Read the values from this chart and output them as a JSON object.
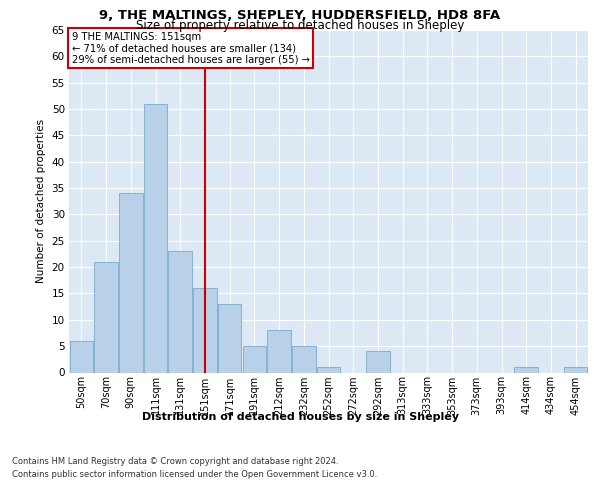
{
  "title_line1": "9, THE MALTINGS, SHEPLEY, HUDDERSFIELD, HD8 8FA",
  "title_line2": "Size of property relative to detached houses in Shepley",
  "xlabel": "Distribution of detached houses by size in Shepley",
  "ylabel": "Number of detached properties",
  "categories": [
    "50sqm",
    "70sqm",
    "90sqm",
    "111sqm",
    "131sqm",
    "151sqm",
    "171sqm",
    "191sqm",
    "212sqm",
    "232sqm",
    "252sqm",
    "272sqm",
    "292sqm",
    "313sqm",
    "333sqm",
    "353sqm",
    "373sqm",
    "393sqm",
    "414sqm",
    "434sqm",
    "454sqm"
  ],
  "values": [
    6,
    21,
    34,
    51,
    23,
    16,
    13,
    5,
    8,
    5,
    1,
    0,
    4,
    0,
    0,
    0,
    0,
    0,
    1,
    0,
    1
  ],
  "bar_color": "#b8d0e8",
  "bar_edge_color": "#7aaad0",
  "vline_x_index": 5,
  "vline_color": "#cc0000",
  "annotation_text": "9 THE MALTINGS: 151sqm\n← 71% of detached houses are smaller (134)\n29% of semi-detached houses are larger (55) →",
  "annotation_box_color": "#ffffff",
  "annotation_box_edge": "#cc0000",
  "ylim": [
    0,
    65
  ],
  "yticks": [
    0,
    5,
    10,
    15,
    20,
    25,
    30,
    35,
    40,
    45,
    50,
    55,
    60,
    65
  ],
  "bg_color": "#dce9f5",
  "footer_line1": "Contains HM Land Registry data © Crown copyright and database right 2024.",
  "footer_line2": "Contains public sector information licensed under the Open Government Licence v3.0."
}
